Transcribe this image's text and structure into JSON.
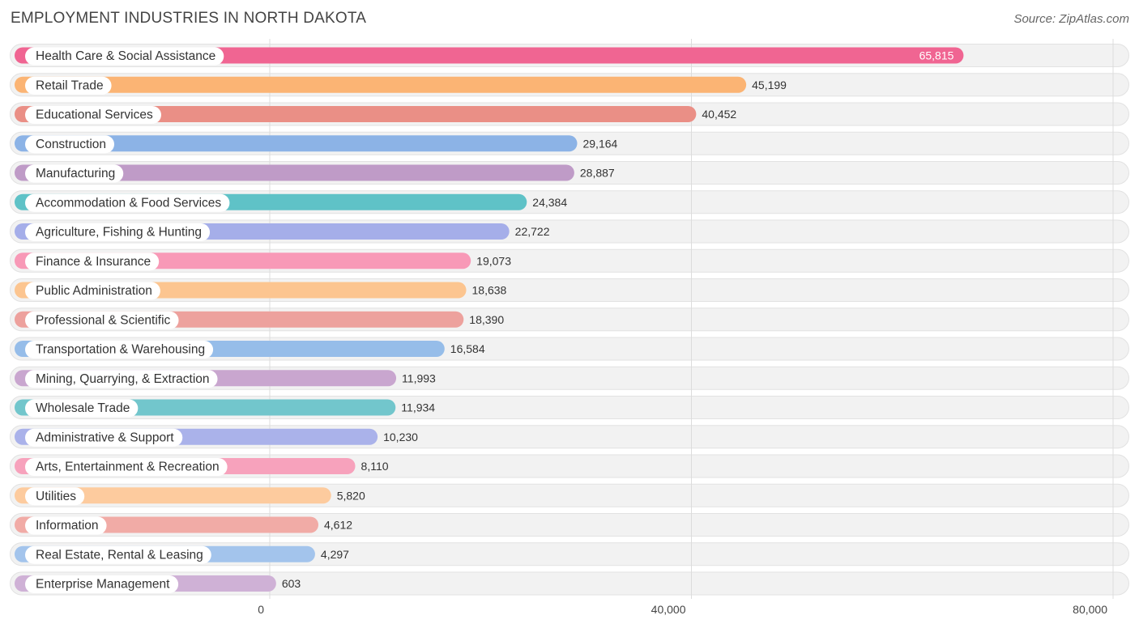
{
  "chart_data": {
    "type": "bar",
    "orientation": "horizontal",
    "title": "EMPLOYMENT INDUSTRIES IN NORTH DAKOTA",
    "source": "Source: ZipAtlas.com",
    "xlim": [
      0,
      80000
    ],
    "ticks": [
      0,
      40000,
      80000
    ],
    "tick_labels": [
      "0",
      "40,000",
      "80,000"
    ],
    "categories": [
      "Health Care & Social Assistance",
      "Retail Trade",
      "Educational Services",
      "Construction",
      "Manufacturing",
      "Accommodation & Food Services",
      "Agriculture, Fishing & Hunting",
      "Finance & Insurance",
      "Public Administration",
      "Professional & Scientific",
      "Transportation & Warehousing",
      "Mining, Quarrying, & Extraction",
      "Wholesale Trade",
      "Administrative & Support",
      "Arts, Entertainment & Recreation",
      "Utilities",
      "Information",
      "Real Estate, Rental & Leasing",
      "Enterprise Management"
    ],
    "values": [
      65815,
      45199,
      40452,
      29164,
      28887,
      24384,
      22722,
      19073,
      18638,
      18390,
      16584,
      11993,
      11934,
      10230,
      8110,
      5820,
      4612,
      4297,
      603
    ],
    "value_labels": [
      "65,815",
      "45,199",
      "40,452",
      "29,164",
      "28,887",
      "24,384",
      "22,722",
      "19,073",
      "18,638",
      "18,390",
      "16,584",
      "11,993",
      "11,934",
      "10,230",
      "8,110",
      "5,820",
      "4,612",
      "4,297",
      "603"
    ],
    "colors": [
      "#f06592",
      "#fbb474",
      "#ea8f86",
      "#8cb3e6",
      "#bf9bc7",
      "#5fc2c7",
      "#a5aee9",
      "#f899b7",
      "#fcc590",
      "#eda19d",
      "#96bde9",
      "#c9a6cf",
      "#72c6cc",
      "#aab2ea",
      "#f7a2bc",
      "#fdcb9e",
      "#f1aba6",
      "#a3c4ec",
      "#cfb1d6"
    ]
  }
}
